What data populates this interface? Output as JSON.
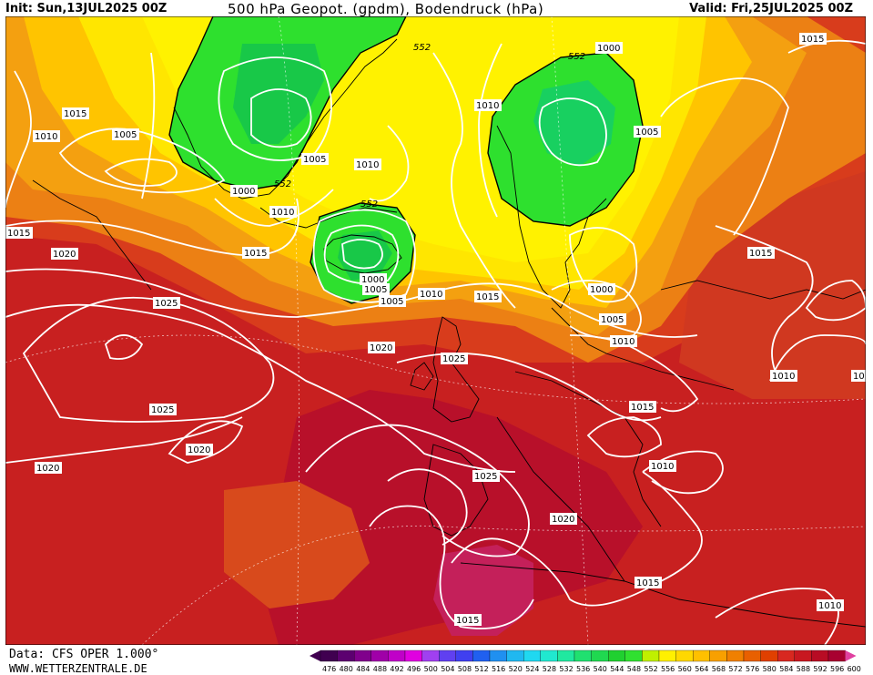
{
  "header": {
    "init": "Init: Sun,13JUL2025 00Z",
    "title": "500 hPa Geopot. (gpdm), Bodendruck (hPa)",
    "valid": "Valid: Fri,25JUL2025 00Z"
  },
  "footer": {
    "data": "Data: CFS OPER 1.000°",
    "site": "WWW.WETTERZENTRALE.DE"
  },
  "colors": {
    "green": "#2ee02e",
    "green_dark": "#18c820",
    "yellow": "#ffe800",
    "yellow_light": "#fff200",
    "gold": "#ffc800",
    "orange": "#f4a010",
    "orange_dark": "#e88010",
    "red_orange": "#e06018",
    "red": "#d03820",
    "red_dark": "#c01820",
    "crimson": "#b00c24",
    "magenta": "#c0205a"
  },
  "scale": {
    "labels": [
      "476",
      "480",
      "484",
      "488",
      "492",
      "496",
      "500",
      "504",
      "508",
      "512",
      "516",
      "520",
      "524",
      "528",
      "532",
      "536",
      "540",
      "544",
      "548",
      "552",
      "556",
      "560",
      "564",
      "568",
      "572",
      "576",
      "580",
      "584",
      "588",
      "592",
      "596",
      "600"
    ],
    "colors": [
      "#400050",
      "#5c0070",
      "#80008c",
      "#a000a8",
      "#c000c8",
      "#e000e0",
      "#a040f0",
      "#6040f0",
      "#4040f0",
      "#2060f0",
      "#2090f0",
      "#20b8f0",
      "#20d8f0",
      "#20e8d0",
      "#20e8a0",
      "#20e070",
      "#20d850",
      "#20d030",
      "#30e030",
      "#c0f000",
      "#fff000",
      "#ffd800",
      "#ffc000",
      "#f8a000",
      "#f08000",
      "#e86000",
      "#e04000",
      "#d82820",
      "#c81820",
      "#b80c24",
      "#a80030",
      "#e040a0"
    ]
  },
  "contours": {
    "labels": [
      {
        "text": "1015"
      },
      {
        "text": "1010"
      },
      {
        "text": "1005"
      },
      {
        "text": "1000"
      },
      {
        "text": "1005"
      },
      {
        "text": "1010"
      },
      {
        "text": "1015"
      },
      {
        "text": "1020"
      },
      {
        "text": "1025"
      },
      {
        "text": "1025"
      },
      {
        "text": "1020"
      },
      {
        "text": "1020"
      },
      {
        "text": "1015"
      },
      {
        "text": "1010"
      },
      {
        "text": "1005"
      },
      {
        "text": "1000"
      },
      {
        "text": "1010"
      },
      {
        "text": "1015"
      },
      {
        "text": "1020"
      },
      {
        "text": "1025"
      },
      {
        "text": "1025"
      },
      {
        "text": "1020"
      },
      {
        "text": "1015"
      },
      {
        "text": "1015"
      },
      {
        "text": "1010"
      },
      {
        "text": "1005"
      },
      {
        "text": "1000"
      },
      {
        "text": "1005"
      },
      {
        "text": "1010"
      },
      {
        "text": "1015"
      },
      {
        "text": "1010"
      },
      {
        "text": "1015"
      },
      {
        "text": "1010"
      },
      {
        "text": "1000"
      },
      {
        "text": "1005"
      },
      {
        "text": "1010"
      },
      {
        "text": "1015"
      },
      {
        "text": "1010"
      },
      {
        "text": "10"
      }
    ],
    "geopot_labels": [
      {
        "text": "552"
      },
      {
        "text": "552"
      },
      {
        "text": "552"
      },
      {
        "text": "552"
      }
    ]
  }
}
